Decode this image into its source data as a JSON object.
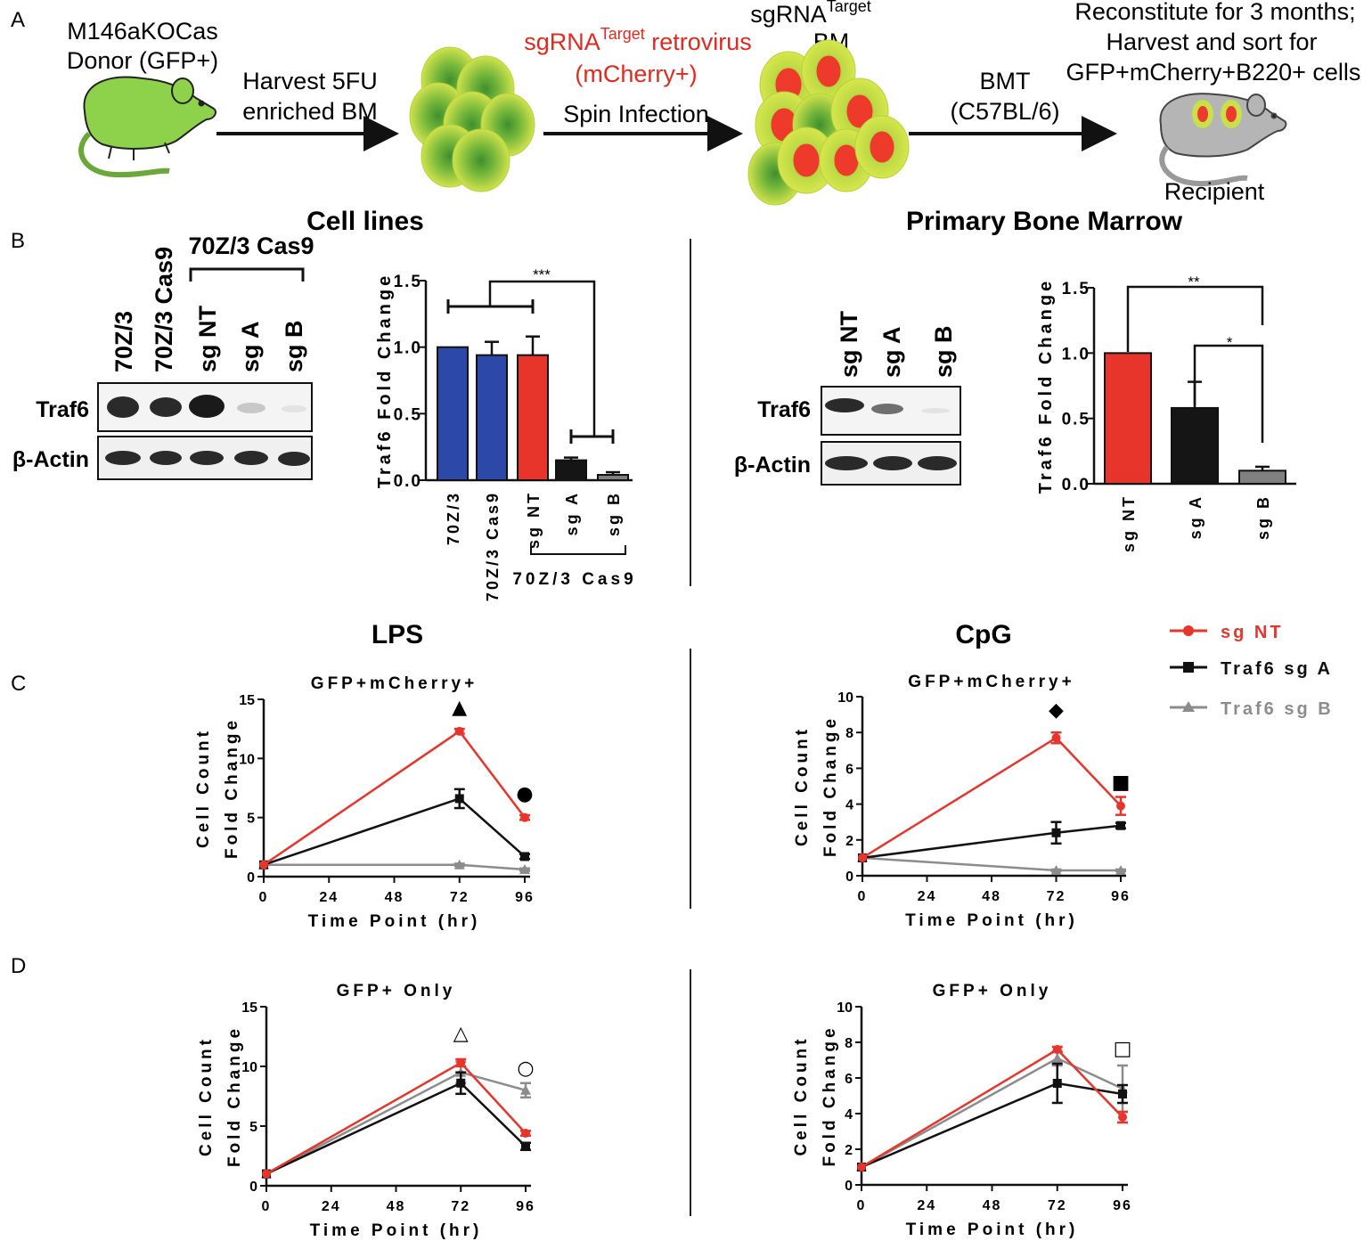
{
  "panel_a": {
    "label": "A",
    "donor_label_1": "M146aKOCas",
    "donor_label_2": "Donor (GFP+)",
    "harvest_label_1": "Harvest 5FU",
    "harvest_label_2": "enriched BM",
    "virus_label_main": "sgRNA",
    "virus_label_sup": "Target",
    "virus_label_rest": " retrovirus",
    "virus_label_2": "(mCherry+)",
    "spin_label": "Spin Infection",
    "bm_label_main": "sgRNA",
    "bm_label_sup": "Target",
    "bm_label_2": "BM",
    "bmt_label_1": "BMT",
    "bmt_label_2": "(C57BL/6)",
    "recon_label_1": "Reconstitute for 3 months;",
    "recon_label_2": "Harvest and sort for",
    "recon_label_3": "GFP+mCherry+B220+ cells",
    "recipient_label": "Recipient",
    "colors": {
      "donor": "#8ed14a",
      "cell_light": "#c8e04a",
      "cell_dark": "#3f8f2f",
      "mcherry": "#ee3a2a",
      "recipient": "#b5b5b5",
      "red_text": "#e02a1f"
    }
  },
  "panel_b": {
    "label": "B",
    "cell_lines_title": "Cell lines",
    "primary_title": "Primary Bone Marrow",
    "blot_left": {
      "group_label": "70Z/3 Cas9",
      "lanes": [
        "70Z/3",
        "70Z/3 Cas9",
        "sg NT",
        "sg A",
        "sg B"
      ],
      "row_labels": [
        "Traf6",
        "β-Actin"
      ]
    },
    "blot_right": {
      "lanes": [
        "sg NT",
        "sg A",
        "sg B"
      ],
      "row_labels": [
        "Traf6",
        "β-Actin"
      ]
    },
    "bar_left_group_label": "70Z/3 Cas9",
    "sig_left": "***",
    "sig_right_1": "**",
    "sig_right_2": "*"
  },
  "panel_c": {
    "label": "C",
    "lps_title": "LPS",
    "cpg_title": "CpG"
  },
  "panel_d": {
    "label": "D"
  },
  "legend": [
    {
      "name": "sg NT",
      "color": "#e8352b",
      "marker": "circle"
    },
    {
      "name": "Traf6 sg A",
      "color": "#111111",
      "marker": "square"
    },
    {
      "name": "Traf6 sg B",
      "color": "#8c8c8c",
      "marker": "triangle"
    }
  ],
  "chart_data": [
    {
      "id": "b_cell_lines",
      "type": "bar",
      "title": "",
      "xlabel": "",
      "ylabel": "Traf6 Fold Change",
      "categories": [
        "70Z/3",
        "70Z/3 Cas9",
        "sg NT",
        "sg A",
        "sg B"
      ],
      "values": [
        1.0,
        0.94,
        0.94,
        0.15,
        0.04
      ],
      "errors": [
        0,
        0.1,
        0.14,
        0.02,
        0.02
      ],
      "colors": [
        "#2d49a8",
        "#2d49a8",
        "#e8352b",
        "#151515",
        "#808080"
      ],
      "ylim": [
        0,
        1.5
      ],
      "yticks": [
        "0.0",
        "0.5",
        "1.0",
        "1.5"
      ],
      "significance": "***"
    },
    {
      "id": "b_primary",
      "type": "bar",
      "title": "",
      "xlabel": "",
      "ylabel": "Traf6 Fold Change",
      "categories": [
        "sg NT",
        "sg A",
        "sg B"
      ],
      "values": [
        1.0,
        0.58,
        0.1
      ],
      "errors": [
        0,
        0.2,
        0.03
      ],
      "colors": [
        "#e8352b",
        "#151515",
        "#808080"
      ],
      "ylim": [
        0,
        1.5
      ],
      "yticks": [
        "0.0",
        "0.5",
        "1.0",
        "1.5"
      ],
      "significance": [
        "**",
        "*"
      ]
    },
    {
      "id": "c_lps",
      "type": "line",
      "title": "GFP+mCherry+",
      "xlabel": "Time Point (hr)",
      "ylabel": "Cell Count Fold Change",
      "x": [
        0,
        72,
        96
      ],
      "xticks": [
        0,
        24,
        48,
        72,
        96
      ],
      "ylim": [
        0,
        15
      ],
      "yticks": [
        0,
        5,
        10,
        15
      ],
      "series": [
        {
          "name": "sg NT",
          "values": [
            1,
            12.3,
            5.0
          ],
          "errors": [
            0,
            0.2,
            0.2
          ]
        },
        {
          "name": "Traf6 sg A",
          "values": [
            1,
            6.6,
            1.7
          ],
          "errors": [
            0,
            0.8,
            0.2
          ]
        },
        {
          "name": "Traf6 sg B",
          "values": [
            1,
            1.0,
            0.6
          ],
          "errors": [
            0,
            0.1,
            0.1
          ]
        }
      ],
      "annotations": [
        {
          "x": 72,
          "symbol": "▲"
        },
        {
          "x": 96,
          "symbol": "●"
        }
      ]
    },
    {
      "id": "c_cpg",
      "type": "line",
      "title": "GFP+mCherry+",
      "xlabel": "Time Point (hr)",
      "ylabel": "Cell Count Fold Change",
      "x": [
        0,
        72,
        96
      ],
      "xticks": [
        0,
        24,
        48,
        72,
        96
      ],
      "ylim": [
        0,
        10
      ],
      "yticks": [
        0,
        2,
        4,
        6,
        8,
        10
      ],
      "series": [
        {
          "name": "sg NT",
          "values": [
            1,
            7.7,
            3.9
          ],
          "errors": [
            0,
            0.3,
            0.5
          ]
        },
        {
          "name": "Traf6 sg A",
          "values": [
            1,
            2.4,
            2.8
          ],
          "errors": [
            0,
            0.6,
            0.15
          ]
        },
        {
          "name": "Traf6 sg B",
          "values": [
            1,
            0.3,
            0.3
          ],
          "errors": [
            0,
            0.05,
            0.05
          ]
        }
      ],
      "annotations": [
        {
          "x": 72,
          "symbol": "◆"
        },
        {
          "x": 96,
          "symbol": "■"
        }
      ]
    },
    {
      "id": "d_lps",
      "type": "line",
      "title": "GFP+ Only",
      "xlabel": "Time Point (hr)",
      "ylabel": "Cell Count Fold Change",
      "x": [
        0,
        72,
        96
      ],
      "xticks": [
        0,
        24,
        48,
        72,
        96
      ],
      "ylim": [
        0,
        15
      ],
      "yticks": [
        0,
        5,
        10,
        15
      ],
      "series": [
        {
          "name": "sg NT",
          "values": [
            1,
            10.3,
            4.4
          ],
          "errors": [
            0,
            0.3,
            0.2
          ]
        },
        {
          "name": "Traf6 sg A",
          "values": [
            1,
            8.6,
            3.3
          ],
          "errors": [
            0,
            0.9,
            0.3
          ]
        },
        {
          "name": "Traf6 sg B",
          "values": [
            1,
            9.5,
            8.0
          ],
          "errors": [
            0,
            0.9,
            0.6
          ]
        }
      ],
      "annotations": [
        {
          "x": 72,
          "symbol": "△"
        },
        {
          "x": 96,
          "symbol": "○"
        }
      ]
    },
    {
      "id": "d_cpg",
      "type": "line",
      "title": "GFP+ Only",
      "xlabel": "Time Point (hr)",
      "ylabel": "Cell Count Fold Change",
      "x": [
        0,
        72,
        96
      ],
      "xticks": [
        0,
        24,
        48,
        72,
        96
      ],
      "ylim": [
        0,
        10
      ],
      "yticks": [
        0,
        2,
        4,
        6,
        8,
        10
      ],
      "series": [
        {
          "name": "sg NT",
          "values": [
            1,
            7.6,
            3.8
          ],
          "errors": [
            0,
            0.15,
            0.3
          ]
        },
        {
          "name": "Traf6 sg A",
          "values": [
            1,
            5.7,
            5.1
          ],
          "errors": [
            0,
            1.1,
            0.5
          ]
        },
        {
          "name": "Traf6 sg B",
          "values": [
            1,
            7.1,
            5.4
          ],
          "errors": [
            0,
            0.4,
            1.3
          ]
        }
      ],
      "annotations": [
        {
          "x": 96,
          "symbol": "□"
        }
      ]
    }
  ]
}
